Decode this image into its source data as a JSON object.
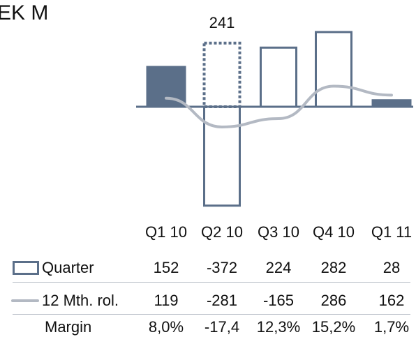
{
  "title": "EK M",
  "chart_data": {
    "type": "bar",
    "categories": [
      "Q1 10",
      "Q2 10",
      "Q3 10",
      "Q4 10",
      "Q1 11"
    ],
    "series": [
      {
        "name": "Quarter",
        "kind": "bar",
        "values": [
          152,
          -372,
          224,
          282,
          28
        ]
      },
      {
        "name": "12 Mth. rol.",
        "kind": "line",
        "values": [
          119,
          -281,
          -165,
          286,
          162
        ]
      }
    ],
    "data_labels": [
      "",
      "241",
      "",
      "",
      ""
    ],
    "highlight_bars": [
      "Q1 10",
      "Q1 11"
    ],
    "dashed_bars": [
      "Q2 10"
    ],
    "dashed_bar_values": [
      241
    ],
    "table_rows": [
      {
        "label": "Quarter",
        "values": [
          "152",
          "-372",
          "224",
          "282",
          "28"
        ]
      },
      {
        "label": "12 Mth. rol.",
        "values": [
          "119",
          "-281",
          "-165",
          "286",
          "162"
        ]
      },
      {
        "label": "Margin",
        "values": [
          "8,0%",
          "-17,4",
          "12,3%",
          "15,2%",
          "1,7%"
        ]
      }
    ],
    "colors": {
      "bar_outline": "#5b6f89",
      "bar_fill_highlight": "#5b6f89",
      "line": "#b3b9c3",
      "axis": "#5b6f89"
    },
    "grid": false,
    "legend": "in table, left column"
  }
}
